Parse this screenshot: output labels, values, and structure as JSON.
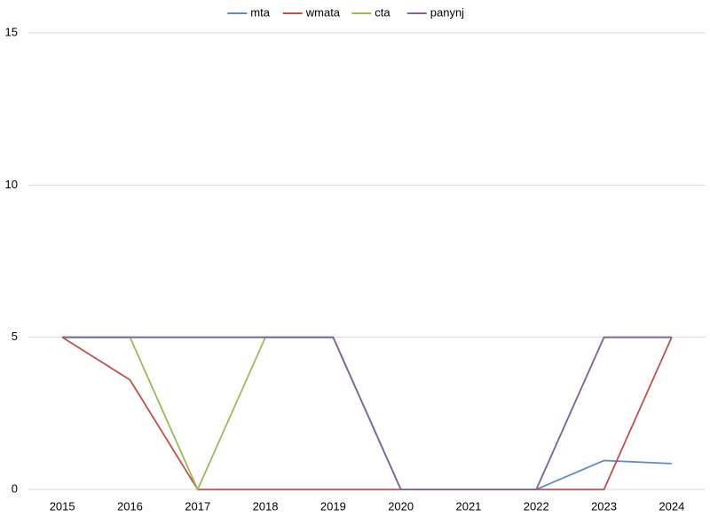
{
  "chart_data": {
    "type": "line",
    "categories": [
      "2015",
      "2016",
      "2017",
      "2018",
      "2019",
      "2020",
      "2021",
      "2022",
      "2023",
      "2024"
    ],
    "series": [
      {
        "name": "mta",
        "color": "#5b8ec7",
        "values": [
          5,
          5,
          5,
          5,
          5,
          0,
          0,
          0,
          0.95,
          0.85
        ]
      },
      {
        "name": "wmata",
        "color": "#c0504d",
        "values": [
          5,
          3.6,
          0,
          0,
          0,
          0,
          0,
          0,
          0,
          5
        ]
      },
      {
        "name": "cta",
        "color": "#9bbb59",
        "values": [
          5,
          5,
          0,
          5,
          5,
          0,
          0,
          0,
          5,
          5
        ]
      },
      {
        "name": "panynj",
        "color": "#8064a2",
        "values": [
          5,
          5,
          5,
          5,
          5,
          0,
          0,
          0,
          5,
          5
        ]
      }
    ],
    "ylim": [
      0,
      15
    ],
    "yticks": [
      0,
      5,
      10,
      15
    ],
    "grid": true,
    "legend": "top"
  }
}
